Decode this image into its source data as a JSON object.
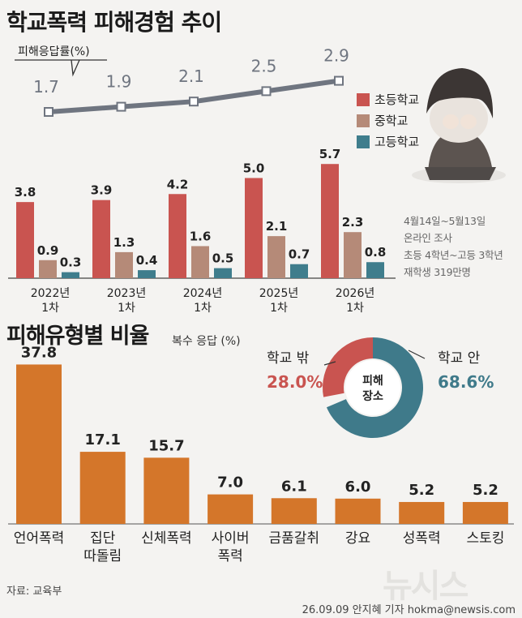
{
  "title": "학교폭력 피해경험 추이",
  "line_label": "피해응답률(%)",
  "legend": [
    {
      "label": "초등학교",
      "color": "#c95450"
    },
    {
      "label": "중학교",
      "color": "#b58a78"
    },
    {
      "label": "고등학교",
      "color": "#3f7d8c"
    }
  ],
  "survey_note": [
    "4월14일~5월13일",
    "온라인 조사",
    "초등 4학년~고등 3학년",
    "재학생 319만명"
  ],
  "colors": {
    "line": "#6f7580",
    "elementary": "#c95450",
    "middle": "#b58a78",
    "high": "#3f7d8c",
    "type_bar": "#d4762a",
    "donut_in": "#3f7a8a",
    "donut_out": "#c95450"
  },
  "chart_data": [
    {
      "type": "bar",
      "categories": [
        "2022년 1차",
        "2023년 1차",
        "2024년 1차",
        "2025년 1차",
        "2026년 1차"
      ],
      "series": [
        {
          "name": "피해응답률(%)",
          "type": "line",
          "values": [
            1.7,
            1.9,
            2.1,
            2.5,
            2.9
          ]
        },
        {
          "name": "초등학교",
          "values": [
            3.8,
            3.9,
            4.2,
            5.0,
            5.7
          ]
        },
        {
          "name": "중학교",
          "values": [
            0.9,
            1.3,
            1.6,
            2.1,
            2.3
          ]
        },
        {
          "name": "고등학교",
          "values": [
            0.3,
            0.4,
            0.5,
            0.7,
            0.8
          ]
        }
      ]
    },
    {
      "type": "bar",
      "title": "피해유형별 비율",
      "subtitle": "복수 응답 (%)",
      "categories": [
        "언어폭력",
        "집단 따돌림",
        "신체폭력",
        "사이버 폭력",
        "금품갈취",
        "강요",
        "성폭력",
        "스토킹"
      ],
      "category_lines": [
        [
          "언어폭력"
        ],
        [
          "집단",
          "따돌림"
        ],
        [
          "신체폭력"
        ],
        [
          "사이버",
          "폭력"
        ],
        [
          "금품갈취"
        ],
        [
          "강요"
        ],
        [
          "성폭력"
        ],
        [
          "스토킹"
        ]
      ],
      "values": [
        37.8,
        17.1,
        15.7,
        7.0,
        6.1,
        6.0,
        5.2,
        5.2
      ],
      "value_labels": [
        "37.8",
        "17.1",
        "15.7",
        "7.0",
        "6.1",
        "6.0",
        "5.2",
        "5.2"
      ]
    },
    {
      "type": "pie",
      "center_label": [
        "피해",
        "장소"
      ],
      "slices": [
        {
          "label": "학교 안",
          "value": 68.6,
          "value_label": "68.6%"
        },
        {
          "label": "학교 밖",
          "value": 28.0,
          "value_label": "28.0%"
        }
      ]
    }
  ],
  "source": "자료: 교육부",
  "credit": "26.09.09 안지혜 기자 hokma@newsis.com",
  "watermark": "뉴시스"
}
